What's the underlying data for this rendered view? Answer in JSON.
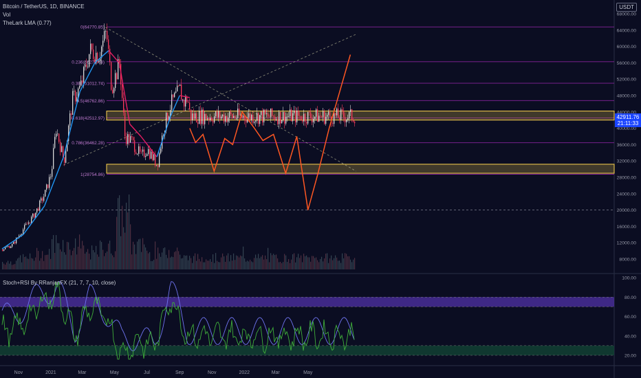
{
  "header": {
    "symbol_line": "Bitcoin / TetherUS, 1D, BINANCE",
    "indicator_vol": "Vol",
    "indicator_lma": "TheLark LMA (0.77)",
    "currency_badge": "USDT"
  },
  "price_badge": {
    "price": "42911.76",
    "timer": "21:11:33"
  },
  "oscillator": {
    "title": "Stoch+RSI By RRanjanFX (21, 7, 7, 10, close)"
  },
  "colors": {
    "background": "#0b0d22",
    "fib_line": "#9c27b0",
    "zone": "#ffd54f",
    "projection": "#ff5722",
    "lma_up": "#2196f3",
    "lma_down": "#e91e63",
    "candle_up": "#d9d9d9",
    "candle_down": "#ff3b5c",
    "stoch_line": "#6f74f0",
    "rsi_line": "#3fae3a"
  },
  "chart_data": [
    {
      "type": "line",
      "title": "Bitcoin / TetherUS, 1D, BINANCE",
      "y_axis": {
        "unit": "USDT",
        "ticks": [
          68000,
          64000,
          60000,
          56000,
          52000,
          48000,
          44000,
          40000,
          36000,
          32000,
          28000,
          24000,
          20000,
          16000,
          12000,
          8000
        ],
        "tick_labels": [
          "68000.00",
          "64000.00",
          "60000.00",
          "56000.00",
          "52000.00",
          "48000.00",
          "44000.00",
          "40000.00",
          "36000.00",
          "32000.00",
          "28000.00",
          "24000.00",
          "20000.00",
          "16000.00",
          "12000.00",
          "8000.00"
        ],
        "ylim": [
          4000,
          70000
        ]
      },
      "x_axis": {
        "tick_labels": [
          "Nov",
          "2021",
          "Mar",
          "May",
          "Jul",
          "Sep",
          "Nov",
          "2022",
          "Mar",
          "May"
        ]
      },
      "fib_levels": [
        {
          "label": "0(64770.85)",
          "value": 64770.85
        },
        {
          "label": "0.236(56271.08)",
          "value": 56271.08
        },
        {
          "label": "0.382(51012.74)",
          "value": 51012.74
        },
        {
          "label": "0.5(46762.86)",
          "value": 46762.86
        },
        {
          "label": "0.618(42512.97)",
          "value": 42512.97
        },
        {
          "label": "0.786(36462.28)",
          "value": 36462.28
        },
        {
          "label": "1(28754.86)",
          "value": 28754.86
        }
      ],
      "zones": [
        {
          "from": 42000,
          "to": 44200
        },
        {
          "from": 29000,
          "to": 31200
        }
      ],
      "reference_lines": [
        {
          "value": 20000,
          "style": "dashed"
        }
      ],
      "price_series": {
        "name": "BTCUSDT",
        "x": [
          "2020-10-01",
          "2020-10-20",
          "2020-11-10",
          "2020-12-01",
          "2020-12-20",
          "2021-01-01",
          "2021-01-10",
          "2021-01-25",
          "2021-02-10",
          "2021-02-25",
          "2021-03-15",
          "2021-04-01",
          "2021-04-15",
          "2021-04-25",
          "2021-05-10",
          "2021-05-20",
          "2021-06-01",
          "2021-06-20",
          "2021-07-01",
          "2021-07-20",
          "2021-08-01",
          "2021-08-15",
          "2021-09-01",
          "2021-09-07",
          "2021-09-15",
          "2021-09-20"
        ],
        "values": [
          10500,
          11500,
          15500,
          19000,
          24000,
          29000,
          40000,
          32000,
          47000,
          50000,
          59000,
          58000,
          63500,
          50000,
          56000,
          38000,
          37000,
          33000,
          35000,
          31000,
          40000,
          46000,
          49500,
          46000,
          47500,
          42900
        ]
      },
      "lma_series": {
        "name": "TheLark LMA (0.77)",
        "x": [
          "2020-10-01",
          "2020-11-10",
          "2020-12-20",
          "2021-01-25",
          "2021-02-25",
          "2021-03-25",
          "2021-04-20",
          "2021-05-10",
          "2021-05-30",
          "2021-06-20",
          "2021-07-20",
          "2021-08-15",
          "2021-09-01",
          "2021-09-20"
        ],
        "values": [
          10500,
          14000,
          21000,
          33000,
          49000,
          56000,
          59000,
          56000,
          41000,
          38000,
          33000,
          43000,
          48000,
          47500
        ]
      },
      "volume": {
        "name": "Vol",
        "x": [
          "2020-10",
          "2020-11",
          "2020-12",
          "2021-01",
          "2021-02",
          "2021-03",
          "2021-04",
          "2021-05",
          "2021-06",
          "2021-07",
          "2021-08",
          "2021-09"
        ],
        "relative": [
          0.1,
          0.15,
          0.2,
          0.35,
          0.3,
          0.22,
          0.28,
          0.7,
          0.3,
          0.2,
          0.25,
          0.15
        ]
      },
      "projection": {
        "x": [
          "2021-09-20",
          "2021-10-01",
          "2021-10-15",
          "2021-11-05",
          "2021-11-25",
          "2021-12-10",
          "2021-12-28",
          "2022-01-20",
          "2022-02-05",
          "2022-02-25",
          "2022-03-20",
          "2022-04-10",
          "2022-05-01",
          "2022-05-20",
          "2022-06-10",
          "2022-07-20"
        ],
        "values": [
          40000,
          36500,
          38500,
          29500,
          37500,
          36000,
          44000,
          40000,
          37000,
          38500,
          29000,
          38000,
          20000,
          29000,
          40000,
          58000
        ]
      },
      "trendlines": [
        {
          "style": "dashed",
          "from": {
            "x": "2021-04-14",
            "y": 64700
          },
          "to": {
            "x": "2022-07-31",
            "y": 29500
          }
        },
        {
          "style": "dashed",
          "from": {
            "x": "2021-01-25",
            "y": 31000
          },
          "to": {
            "x": "2022-07-31",
            "y": 63000
          }
        }
      ]
    },
    {
      "type": "line",
      "title": "Stoch+RSI By RRanjanFX (21, 7, 7, 10, close)",
      "ylim": [
        12,
        102
      ],
      "y_axis": {
        "ticks": [
          100,
          80,
          60,
          40,
          20
        ],
        "tick_labels": [
          "100.00",
          "80.00",
          "60.00",
          "40.00",
          "20.00"
        ]
      },
      "bands": [
        {
          "from": 70,
          "to": 80
        },
        {
          "from": 20,
          "to": 30
        }
      ],
      "series": [
        {
          "name": "Stoch",
          "x": [
            "2020-10",
            "2020-11",
            "2020-12",
            "2021-01",
            "2021-02",
            "2021-03",
            "2021-04",
            "2021-05",
            "2021-06",
            "2021-07",
            "2021-08",
            "2021-09"
          ],
          "values": [
            60,
            70,
            85,
            90,
            45,
            80,
            65,
            35,
            40,
            30,
            90,
            45
          ]
        },
        {
          "name": "RSI",
          "x": [
            "2020-10",
            "2020-11",
            "2020-12",
            "2021-01",
            "2021-02",
            "2021-03",
            "2021-04",
            "2021-05",
            "2021-06",
            "2021-07",
            "2021-08",
            "2021-09"
          ],
          "values": [
            45,
            55,
            75,
            85,
            40,
            70,
            60,
            20,
            35,
            30,
            80,
            40
          ]
        }
      ]
    }
  ]
}
